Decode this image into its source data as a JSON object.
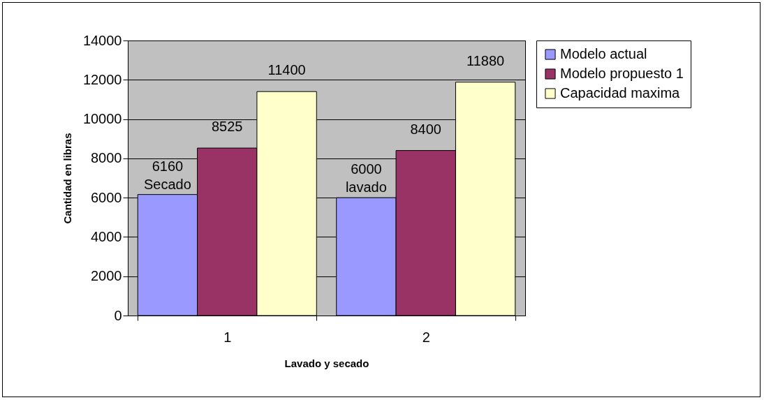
{
  "chart_data": {
    "type": "bar",
    "xlabel": "Lavado y secado",
    "ylabel": "Cantidad en libras",
    "categories": [
      "1",
      "2"
    ],
    "series": [
      {
        "name": "Modelo actual",
        "color": "#9999ff",
        "values": [
          6160,
          6000
        ]
      },
      {
        "name": "Modelo propuesto 1",
        "color": "#993366",
        "values": [
          8525,
          8400
        ]
      },
      {
        "name": "Capacidad maxima",
        "color": "#ffffcc",
        "values": [
          11400,
          11880
        ]
      }
    ],
    "ylim": [
      0,
      14000
    ],
    "yticks": [
      0,
      2000,
      4000,
      6000,
      8000,
      10000,
      12000,
      14000
    ],
    "grid": "y",
    "legend": "right",
    "data_labels": true,
    "annotations": [
      "Secado",
      "lavado"
    ]
  }
}
